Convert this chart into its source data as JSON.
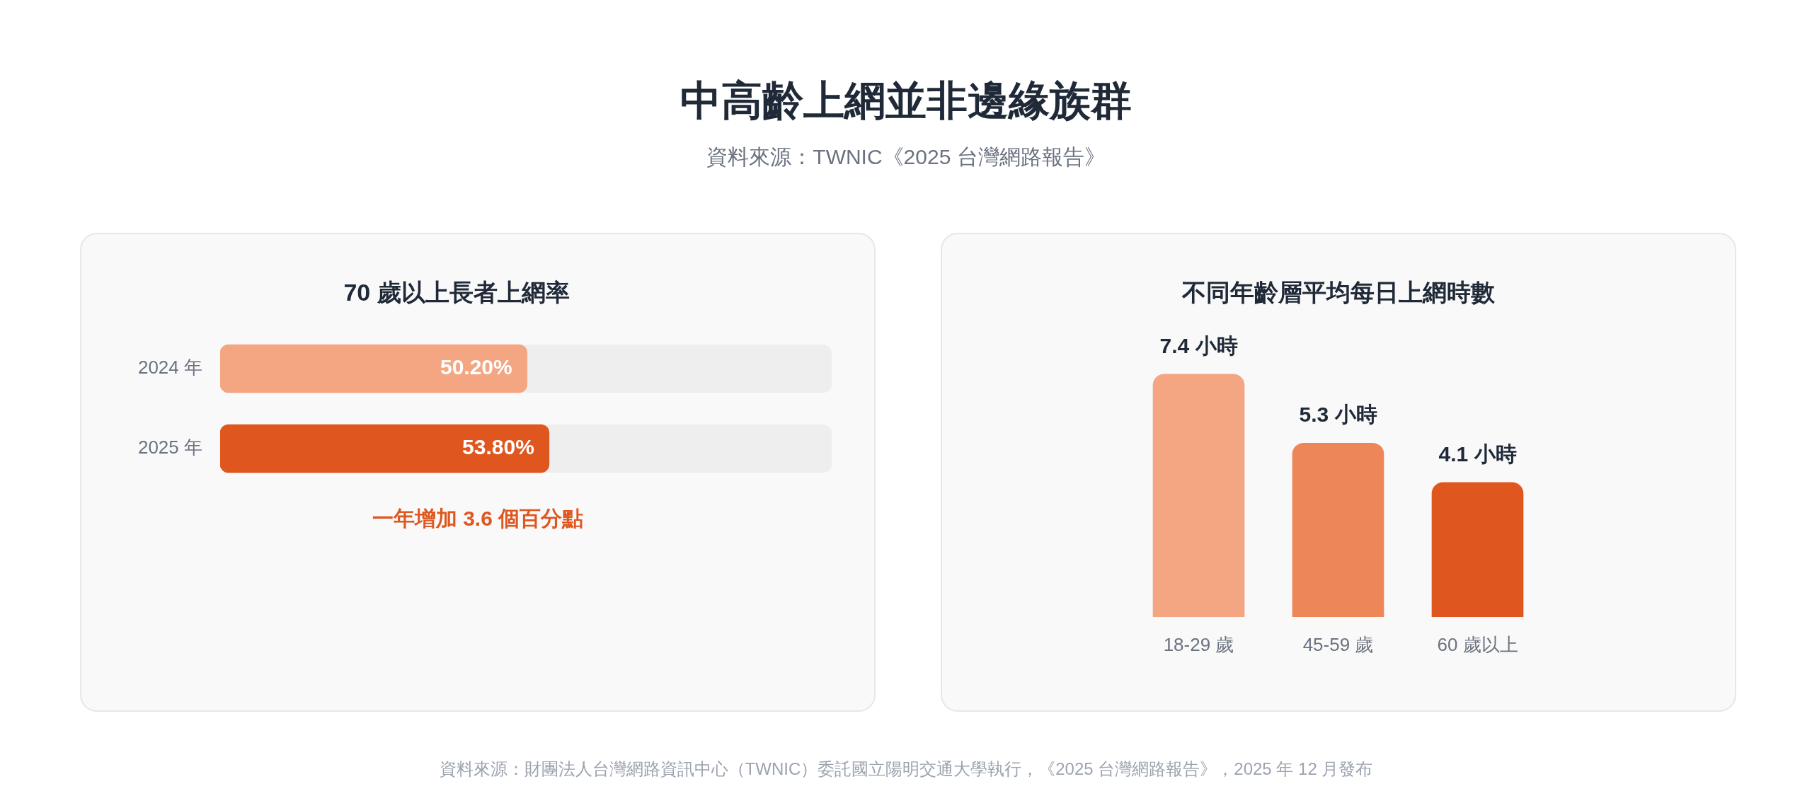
{
  "chart_data": [
    {
      "type": "other",
      "title": "中高齡上網並非邊緣族群",
      "subtitle": "資料來源：TWNIC《2025 台灣網路報告》",
      "annotations": [
        "資料來源：財團法人台灣網路資訊中心（TWNIC）委託國立陽明交通大學執行，《2025 台灣網路報告》，2025 年 12 月發布"
      ]
    },
    {
      "type": "bar",
      "orientation": "horizontal",
      "title": "70 歲以上長者上網率",
      "categories": [
        "2024 年",
        "2025 年"
      ],
      "values": [
        50.2,
        53.8
      ],
      "colors": [
        "#f4a582",
        "#e0561f"
      ],
      "value_labels": [
        "50.20%",
        "53.80%"
      ],
      "xlim": [
        0,
        100
      ],
      "tick_labels": "y",
      "annotations": [
        "一年增加 3.6 個百分點"
      ]
    },
    {
      "type": "bar",
      "title": "不同年齡層平均每日上網時數",
      "categories": [
        "18-29 歲",
        "45-59 歲",
        "60 歲以上"
      ],
      "values": [
        7.4,
        5.3,
        4.1
      ],
      "colors": [
        "#f4a582",
        "#ee8758",
        "#e0561f"
      ],
      "value_labels": [
        "7.4 小時",
        "5.3 小時",
        "4.1 小時"
      ],
      "tick_labels": "x"
    }
  ]
}
